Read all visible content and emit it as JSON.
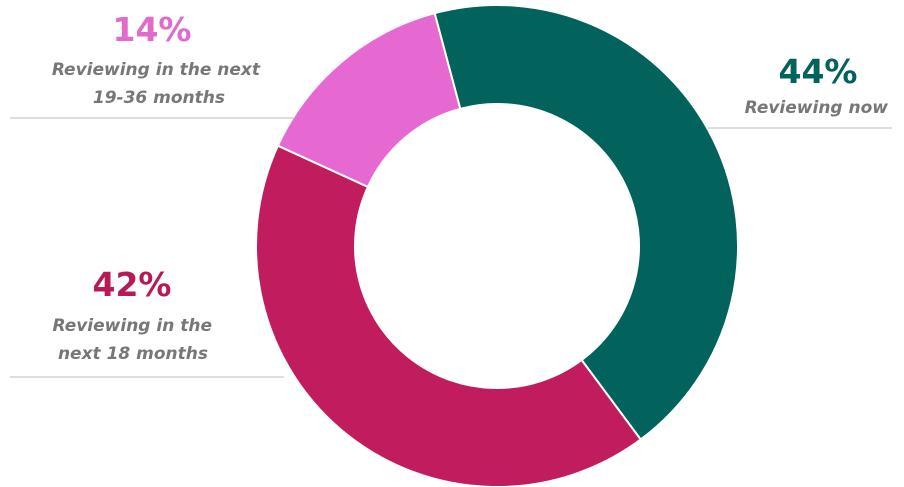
{
  "chart_data": {
    "type": "pie",
    "variant": "donut",
    "title": "",
    "slices": [
      {
        "label": "Reviewing now",
        "value": 44,
        "value_label": "44%",
        "color": "#02625c",
        "label_color": "#02625c"
      },
      {
        "label": "Reviewing in the next 18 months",
        "label_lines": [
          "Reviewing in the",
          "next 18 months"
        ],
        "value": 42,
        "value_label": "42%",
        "color": "#c11c5d",
        "label_color": "#b81a56"
      },
      {
        "label": "Reviewing in the next 19-36 months",
        "label_lines": [
          "Reviewing in the next",
          "19-36 months"
        ],
        "value": 14,
        "value_label": "14%",
        "color": "#e569d0",
        "label_color": "#e16acb"
      }
    ],
    "legend": "none",
    "slice_border_color": "#ffffff",
    "leader_line_color": "#bdbdbd",
    "description_color": "#777777"
  }
}
